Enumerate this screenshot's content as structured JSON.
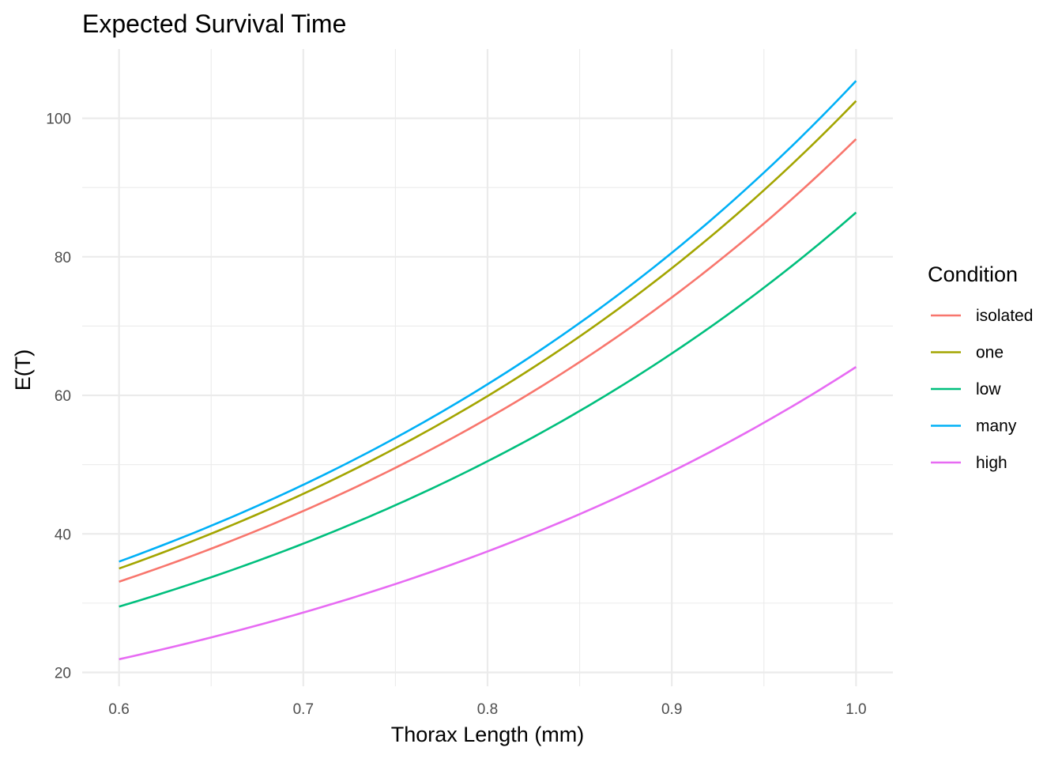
{
  "chart_data": {
    "type": "line",
    "title": "Expected Survival Time",
    "xlabel": "Thorax Length (mm)",
    "ylabel": "E(T)",
    "xlim": [
      0.58,
      1.02
    ],
    "ylim": [
      18,
      110
    ],
    "x_ticks": [
      0.6,
      0.7,
      0.8,
      0.9,
      1.0
    ],
    "x_tick_labels": [
      "0.6",
      "0.7",
      "0.8",
      "0.9",
      "1.0"
    ],
    "x_minor_ticks": [
      0.65,
      0.75,
      0.85,
      0.95
    ],
    "y_ticks": [
      20,
      40,
      60,
      80,
      100
    ],
    "y_tick_labels": [
      "20",
      "40",
      "60",
      "80",
      "100"
    ],
    "y_minor_ticks": [
      30,
      50,
      70,
      90
    ],
    "grid": true,
    "legend": {
      "title": "Condition",
      "placement": "right"
    },
    "series": [
      {
        "name": "isolated",
        "color": "#F8766D",
        "start": [
          0.6,
          33.1
        ],
        "end": [
          1.0,
          97.0
        ]
      },
      {
        "name": "one",
        "color": "#A3A500",
        "start": [
          0.6,
          35.0
        ],
        "end": [
          1.0,
          102.5
        ]
      },
      {
        "name": "low",
        "color": "#00BF7D",
        "start": [
          0.6,
          29.5
        ],
        "end": [
          1.0,
          86.4
        ]
      },
      {
        "name": "many",
        "color": "#00B0F6",
        "start": [
          0.6,
          36.0
        ],
        "end": [
          1.0,
          105.4
        ]
      },
      {
        "name": "high",
        "color": "#E76BF3",
        "start": [
          0.6,
          21.9
        ],
        "end": [
          1.0,
          64.1
        ]
      }
    ]
  }
}
